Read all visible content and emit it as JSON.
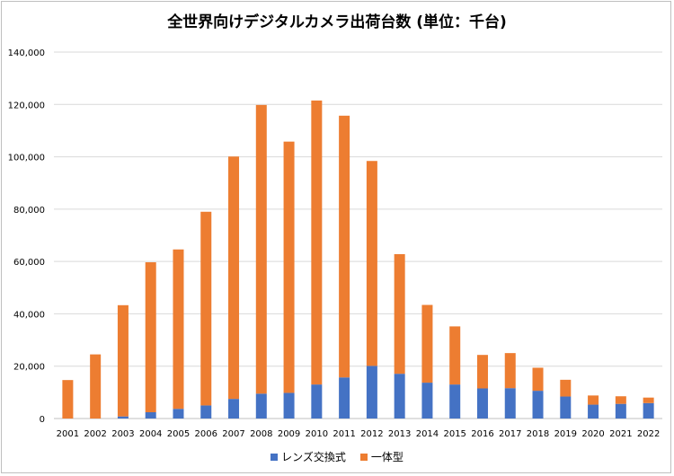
{
  "chart_data": {
    "type": "bar",
    "stacked": true,
    "title": "全世界向けデジタルカメラ出荷台数 (単位：千台)",
    "xlabel": "",
    "ylabel": "",
    "ylim": [
      0,
      140000
    ],
    "yticks": [
      "0",
      "20,000",
      "40,000",
      "60,000",
      "80,000",
      "100,000",
      "120,000",
      "140,000"
    ],
    "grid": true,
    "legend_position": "bottom",
    "categories": [
      "2001",
      "2002",
      "2003",
      "2004",
      "2005",
      "2006",
      "2007",
      "2008",
      "2009",
      "2010",
      "2011",
      "2012",
      "2013",
      "2014",
      "2015",
      "2016",
      "2017",
      "2018",
      "2019",
      "2020",
      "2021",
      "2022"
    ],
    "series": [
      {
        "name": "レンズ交換式",
        "color": "#4472c4",
        "values": [
          0,
          0,
          800,
          2400,
          3700,
          5000,
          7500,
          9500,
          9800,
          13000,
          15700,
          20100,
          17100,
          13700,
          13000,
          11500,
          11600,
          10600,
          8400,
          5300,
          5600,
          5900
        ]
      },
      {
        "name": "一体型",
        "color": "#ed7d31",
        "values": [
          14700,
          24500,
          42500,
          57300,
          60900,
          74000,
          92600,
          110300,
          96000,
          108500,
          100000,
          78300,
          45700,
          29700,
          22200,
          12800,
          13400,
          8800,
          6400,
          3500,
          2900,
          2100
        ]
      }
    ]
  }
}
